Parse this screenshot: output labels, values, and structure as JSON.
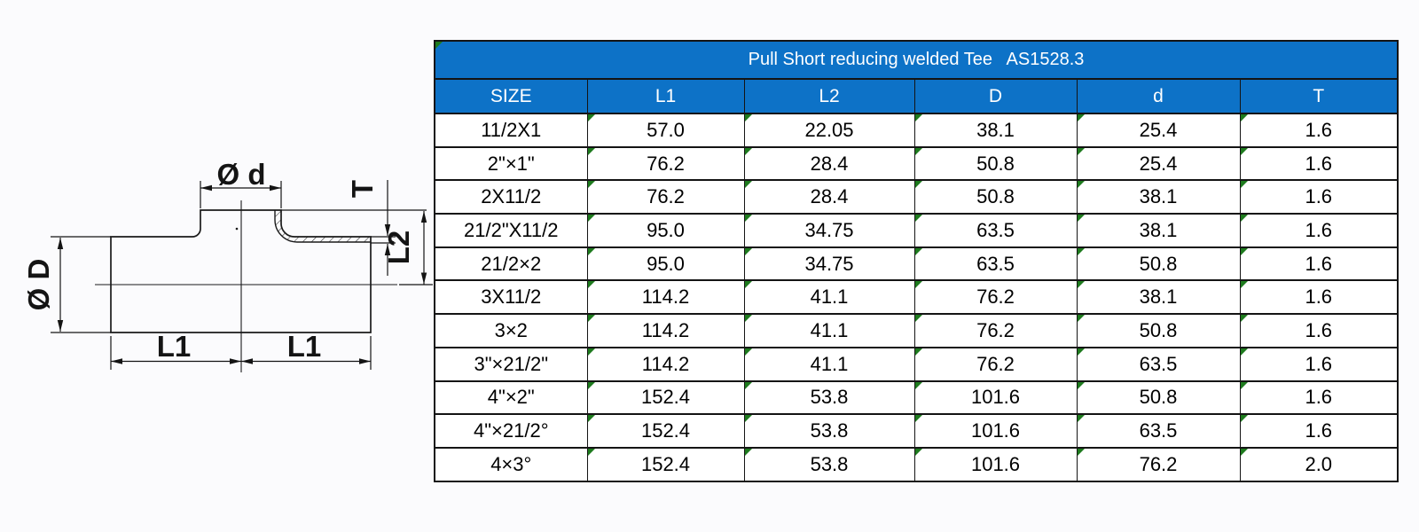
{
  "drawing": {
    "labels": {
      "branch_diameter": "Ø d",
      "wall_thickness": "T",
      "branch_length": "L2",
      "main_diameter": "Ø D",
      "length_left": "L1",
      "length_right": "L1"
    }
  },
  "table": {
    "title": "Pull Short reducing welded Tee   AS1528.3",
    "columns": [
      "SIZE",
      "L1",
      "L2",
      "D",
      "d",
      "T"
    ],
    "rows": [
      [
        "11/2X1",
        "57.0",
        "22.05",
        "38.1",
        "25.4",
        "1.6"
      ],
      [
        "2\"×1\"",
        "76.2",
        "28.4",
        "50.8",
        "25.4",
        "1.6"
      ],
      [
        "2X11/2",
        "76.2",
        "28.4",
        "50.8",
        "38.1",
        "1.6"
      ],
      [
        "21/2\"X11/2",
        "95.0",
        "34.75",
        "63.5",
        "38.1",
        "1.6"
      ],
      [
        "21/2×2",
        "95.0",
        "34.75",
        "63.5",
        "50.8",
        "1.6"
      ],
      [
        "3X11/2",
        "114.2",
        "41.1",
        "76.2",
        "38.1",
        "1.6"
      ],
      [
        "3×2",
        "114.2",
        "41.1",
        "76.2",
        "50.8",
        "1.6"
      ],
      [
        "3\"×21/2\"",
        "114.2",
        "41.1",
        "76.2",
        "63.5",
        "1.6"
      ],
      [
        "4\"×2\"",
        "152.4",
        "53.8",
        "101.6",
        "50.8",
        "1.6"
      ],
      [
        "4\"×21/2°",
        "152.4",
        "53.8",
        "101.6",
        "63.5",
        "1.6"
      ],
      [
        "4×3°",
        "152.4",
        "53.8",
        "101.6",
        "76.2",
        "2.0"
      ]
    ],
    "colors": {
      "header_bg": "#0d72c7",
      "header_text": "#ffffff",
      "grid": "#141414",
      "flag_green": "#1e7b1e"
    }
  }
}
